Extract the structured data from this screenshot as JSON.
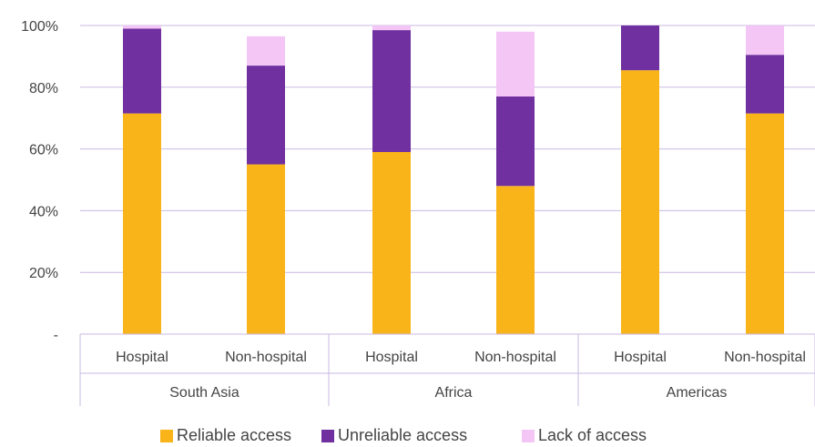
{
  "chart_data": {
    "type": "bar",
    "stacked": true,
    "y_tick_labels": [
      "-",
      "20%",
      "40%",
      "60%",
      "80%",
      "100%"
    ],
    "y_ticks": [
      0,
      20,
      40,
      60,
      80,
      100
    ],
    "ylim": [
      0,
      100
    ],
    "grid": true,
    "legend_position": "bottom",
    "groups": [
      {
        "label": "South Asia",
        "categories": [
          "Hospital",
          "Non-hospital"
        ]
      },
      {
        "label": "Africa",
        "categories": [
          "Hospital",
          "Non-hospital"
        ]
      },
      {
        "label": "Americas",
        "categories": [
          "Hospital",
          "Non-hospital"
        ]
      }
    ],
    "series": [
      {
        "name": "Reliable access",
        "color": "#f9b419",
        "values": [
          71.5,
          55,
          59,
          48,
          85.5,
          71.5
        ]
      },
      {
        "name": "Unreliable access",
        "color": "#7030a0",
        "values": [
          27.5,
          32,
          39.5,
          29,
          14.5,
          19
        ]
      },
      {
        "name": "Lack of access",
        "color": "#f3c6f5",
        "values": [
          1,
          9.5,
          1.5,
          21,
          0,
          9.5
        ]
      }
    ],
    "colors": {
      "grid": "#c9b9e3",
      "axis": "#c9b9e3",
      "text": "#444444"
    }
  }
}
